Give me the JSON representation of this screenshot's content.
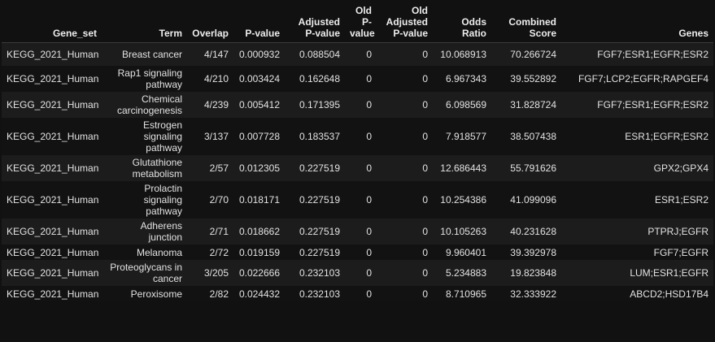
{
  "table": {
    "columns": [
      "Gene_set",
      "Term",
      "Overlap",
      "P-value",
      "Adjusted P-value",
      "Old P-value",
      "Old Adjusted P-value",
      "Odds Ratio",
      "Combined Score",
      "Genes"
    ],
    "rows": [
      [
        "KEGG_2021_Human",
        "Breast cancer",
        "4/147",
        "0.000932",
        "0.088504",
        "0",
        "0",
        "10.068913",
        "70.266724",
        "FGF7;ESR1;EGFR;ESR2"
      ],
      [
        "KEGG_2021_Human",
        "Rap1 signaling pathway",
        "4/210",
        "0.003424",
        "0.162648",
        "0",
        "0",
        "6.967343",
        "39.552892",
        "FGF7;LCP2;EGFR;RAPGEF4"
      ],
      [
        "KEGG_2021_Human",
        "Chemical carcinogenesis",
        "4/239",
        "0.005412",
        "0.171395",
        "0",
        "0",
        "6.098569",
        "31.828724",
        "FGF7;ESR1;EGFR;ESR2"
      ],
      [
        "KEGG_2021_Human",
        "Estrogen signaling pathway",
        "3/137",
        "0.007728",
        "0.183537",
        "0",
        "0",
        "7.918577",
        "38.507438",
        "ESR1;EGFR;ESR2"
      ],
      [
        "KEGG_2021_Human",
        "Glutathione metabolism",
        "2/57",
        "0.012305",
        "0.227519",
        "0",
        "0",
        "12.686443",
        "55.791626",
        "GPX2;GPX4"
      ],
      [
        "KEGG_2021_Human",
        "Prolactin signaling pathway",
        "2/70",
        "0.018171",
        "0.227519",
        "0",
        "0",
        "10.254386",
        "41.099096",
        "ESR1;ESR2"
      ],
      [
        "KEGG_2021_Human",
        "Adherens junction",
        "2/71",
        "0.018662",
        "0.227519",
        "0",
        "0",
        "10.105263",
        "40.231628",
        "PTPRJ;EGFR"
      ],
      [
        "KEGG_2021_Human",
        "Melanoma",
        "2/72",
        "0.019159",
        "0.227519",
        "0",
        "0",
        "9.960401",
        "39.392978",
        "FGF7;EGFR"
      ],
      [
        "KEGG_2021_Human",
        "Proteoglycans in cancer",
        "3/205",
        "0.022666",
        "0.232103",
        "0",
        "0",
        "5.234883",
        "19.823848",
        "LUM;ESR1;EGFR"
      ],
      [
        "KEGG_2021_Human",
        "Peroxisome",
        "2/82",
        "0.024432",
        "0.232103",
        "0",
        "0",
        "8.710965",
        "32.333922",
        "ABCD2;HSD17B4"
      ]
    ]
  }
}
